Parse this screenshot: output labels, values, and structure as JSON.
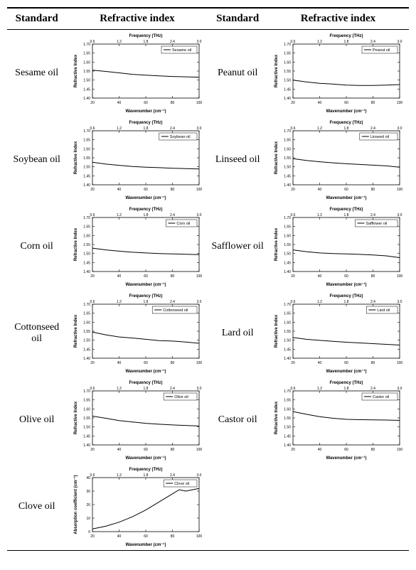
{
  "headers": {
    "standard": "Standard",
    "refractive": "Refractive index"
  },
  "axis_frequency": "Frequency (THz)",
  "axis_wavenumber": "Wavenumber (cm⁻¹)",
  "axis_refractive": "Refractive Index",
  "axis_absorption": "Absorption coefficient (cm⁻¹)",
  "xticks_bottom": [
    "20",
    "40",
    "60",
    "80",
    "100"
  ],
  "xticks_top": [
    "0.6",
    "1.2",
    "1.8",
    "2.4",
    "3.0"
  ],
  "yticks_ri": [
    "1.40",
    "1.45",
    "1.50",
    "1.55",
    "1.60",
    "1.65",
    "1.70"
  ],
  "ri_ylim": [
    1.4,
    1.7
  ],
  "x_lim": [
    20,
    100
  ],
  "colors": {
    "line": "#000000",
    "axis": "#000000",
    "text": "#000000",
    "bg": "#ffffff"
  },
  "fontsize": {
    "axis_title": 6,
    "tick": 5,
    "legend": 5.5
  },
  "rows": [
    {
      "left": {
        "label": "Sesame oil",
        "legend": "Sesame oil",
        "type": "ri",
        "line": [
          [
            20,
            1.555
          ],
          [
            30,
            1.548
          ],
          [
            40,
            1.54
          ],
          [
            50,
            1.532
          ],
          [
            60,
            1.527
          ],
          [
            70,
            1.523
          ],
          [
            80,
            1.52
          ],
          [
            90,
            1.518
          ],
          [
            100,
            1.516
          ]
        ]
      },
      "right": {
        "label": "Peanut oil",
        "legend": "Peanut oil",
        "type": "ri",
        "line": [
          [
            20,
            1.5
          ],
          [
            30,
            1.49
          ],
          [
            40,
            1.482
          ],
          [
            50,
            1.478
          ],
          [
            60,
            1.472
          ],
          [
            70,
            1.47
          ],
          [
            80,
            1.47
          ],
          [
            90,
            1.472
          ],
          [
            100,
            1.475
          ]
        ]
      }
    },
    {
      "left": {
        "label": "Soybean oil",
        "legend": "Soybean oil",
        "type": "ri",
        "line": [
          [
            20,
            1.525
          ],
          [
            30,
            1.515
          ],
          [
            40,
            1.508
          ],
          [
            50,
            1.502
          ],
          [
            60,
            1.498
          ],
          [
            70,
            1.495
          ],
          [
            80,
            1.492
          ],
          [
            90,
            1.49
          ],
          [
            100,
            1.488
          ]
        ]
      },
      "right": {
        "label": "Linseed oil",
        "legend": "Linseed oil",
        "type": "ri",
        "line": [
          [
            20,
            1.545
          ],
          [
            30,
            1.535
          ],
          [
            40,
            1.528
          ],
          [
            50,
            1.522
          ],
          [
            60,
            1.517
          ],
          [
            70,
            1.513
          ],
          [
            80,
            1.509
          ],
          [
            90,
            1.505
          ],
          [
            100,
            1.498
          ]
        ]
      }
    },
    {
      "left": {
        "label": "Corn oil",
        "legend": "Corn oil",
        "type": "ri",
        "line": [
          [
            20,
            1.53
          ],
          [
            30,
            1.52
          ],
          [
            40,
            1.513
          ],
          [
            50,
            1.507
          ],
          [
            60,
            1.503
          ],
          [
            70,
            1.5
          ],
          [
            80,
            1.498
          ],
          [
            90,
            1.496
          ],
          [
            100,
            1.494
          ]
        ]
      },
      "right": {
        "label": "Safflower oil",
        "legend": "Safflower oil",
        "type": "ri",
        "line": [
          [
            20,
            1.52
          ],
          [
            30,
            1.51
          ],
          [
            40,
            1.503
          ],
          [
            50,
            1.5
          ],
          [
            60,
            1.498
          ],
          [
            70,
            1.495
          ],
          [
            80,
            1.492
          ],
          [
            90,
            1.487
          ],
          [
            100,
            1.477
          ]
        ]
      }
    },
    {
      "left": {
        "label": "Cottonseed oil",
        "legend": "Cottonseed oil",
        "type": "ri",
        "line": [
          [
            20,
            1.545
          ],
          [
            30,
            1.53
          ],
          [
            40,
            1.518
          ],
          [
            50,
            1.512
          ],
          [
            60,
            1.505
          ],
          [
            70,
            1.498
          ],
          [
            80,
            1.495
          ],
          [
            90,
            1.49
          ],
          [
            100,
            1.483
          ]
        ]
      },
      "right": {
        "label": "Lard oil",
        "legend": "Lard oil",
        "type": "ri",
        "line": [
          [
            20,
            1.515
          ],
          [
            30,
            1.505
          ],
          [
            40,
            1.499
          ],
          [
            50,
            1.494
          ],
          [
            60,
            1.489
          ],
          [
            70,
            1.485
          ],
          [
            80,
            1.481
          ],
          [
            90,
            1.477
          ],
          [
            100,
            1.473
          ]
        ]
      }
    },
    {
      "left": {
        "label": "Olive oil",
        "legend": "Olive oil",
        "type": "ri",
        "line": [
          [
            20,
            1.56
          ],
          [
            30,
            1.548
          ],
          [
            40,
            1.535
          ],
          [
            50,
            1.527
          ],
          [
            60,
            1.52
          ],
          [
            70,
            1.515
          ],
          [
            80,
            1.511
          ],
          [
            90,
            1.508
          ],
          [
            100,
            1.505
          ]
        ]
      },
      "right": {
        "label": "Castor oil",
        "legend": "Castor oil",
        "type": "ri",
        "line": [
          [
            20,
            1.585
          ],
          [
            30,
            1.57
          ],
          [
            40,
            1.557
          ],
          [
            50,
            1.548
          ],
          [
            60,
            1.542
          ],
          [
            70,
            1.54
          ],
          [
            80,
            1.539
          ],
          [
            90,
            1.538
          ],
          [
            100,
            1.536
          ]
        ]
      }
    },
    {
      "left": {
        "label": "Clove oil",
        "legend": "Clove oil",
        "type": "ab",
        "ylim": [
          0,
          40
        ],
        "yticks": [
          "0",
          "10",
          "20",
          "30",
          "40"
        ],
        "line": [
          [
            20,
            2
          ],
          [
            30,
            4
          ],
          [
            40,
            7
          ],
          [
            50,
            11
          ],
          [
            60,
            16
          ],
          [
            70,
            22
          ],
          [
            80,
            28
          ],
          [
            85,
            31
          ],
          [
            90,
            30
          ],
          [
            95,
            31
          ],
          [
            100,
            32
          ]
        ]
      },
      "right": null
    }
  ]
}
